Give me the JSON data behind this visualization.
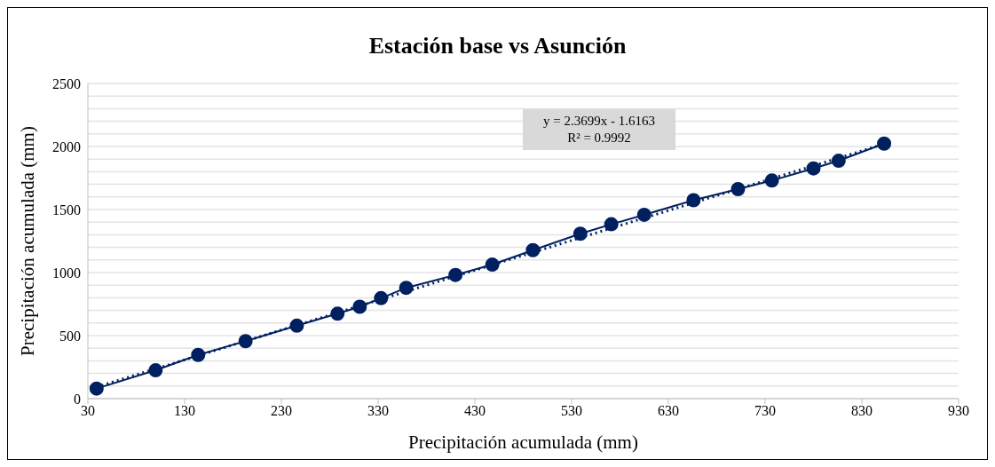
{
  "chart_data": {
    "type": "line",
    "title": "Estación base vs  Asunción",
    "xlabel": "Precipitación acumulada (mm)",
    "ylabel": "Precipitación acumulada (mm)",
    "annotations": [
      "y = 2.3699x - 1.6163",
      "R² = 0.9992"
    ],
    "series": [
      {
        "color": "#002060",
        "marker": "circle",
        "line_style": "solid",
        "x": [
          39,
          100,
          144,
          193,
          246,
          288,
          311,
          333,
          359,
          410,
          448,
          490,
          539,
          571,
          605,
          656,
          702,
          737,
          780,
          806,
          853
        ],
        "values": [
          80,
          225,
          347,
          456,
          579,
          674,
          729,
          797,
          879,
          981,
          1063,
          1178,
          1308,
          1383,
          1458,
          1574,
          1662,
          1730,
          1826,
          1887,
          2023
        ]
      },
      {
        "color": "#002060",
        "marker": "none",
        "line_style": "dotted",
        "x": [
          39,
          853
        ],
        "values": [
          92,
          2020
        ]
      }
    ],
    "xlim": [
      30,
      930
    ],
    "xticks": [
      30,
      130,
      230,
      330,
      430,
      530,
      630,
      730,
      830,
      930
    ],
    "ylim": [
      0,
      2500
    ],
    "yticks": [
      0,
      {
        "value": 100,
        "label": null
      },
      {
        "value": 200,
        "label": null
      },
      {
        "value": 300,
        "label": null
      },
      {
        "value": 400,
        "label": null
      },
      500,
      {
        "value": 600,
        "label": null
      },
      {
        "value": 700,
        "label": null
      },
      {
        "value": 800,
        "label": null
      },
      {
        "value": 900,
        "label": null
      },
      1000,
      {
        "value": 1100,
        "label": null
      },
      {
        "value": 1200,
        "label": null
      },
      {
        "value": 1300,
        "label": null
      },
      {
        "value": 1400,
        "label": null
      },
      1500,
      {
        "value": 1600,
        "label": null
      },
      {
        "value": 1700,
        "label": null
      },
      {
        "value": 1800,
        "label": null
      },
      {
        "value": 1900,
        "label": null
      },
      2000,
      {
        "value": 2100,
        "label": null
      },
      {
        "value": 2200,
        "label": null
      },
      {
        "value": 2300,
        "label": null
      },
      {
        "value": 2400,
        "label": null
      },
      2500
    ],
    "grid": "y"
  }
}
